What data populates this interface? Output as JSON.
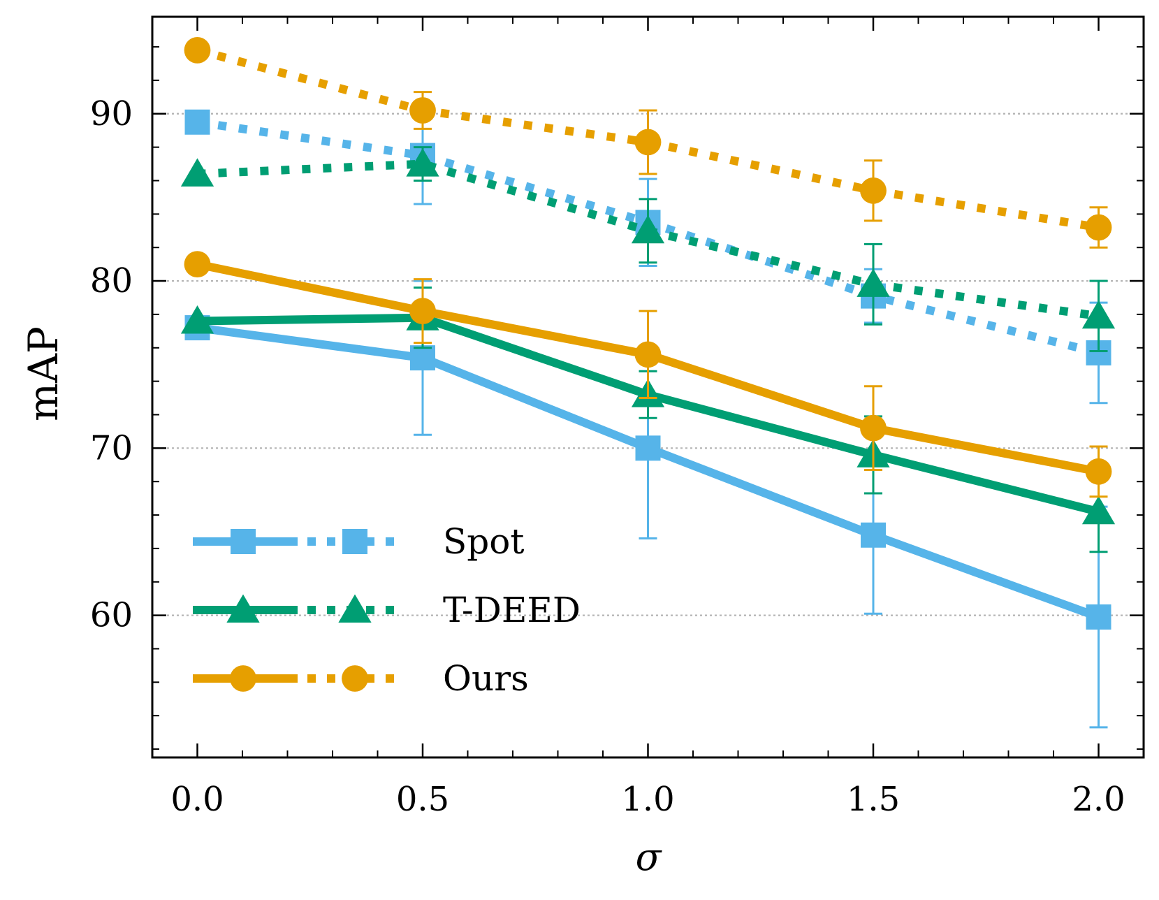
{
  "chart_data": {
    "type": "line",
    "xlabel": "σ",
    "ylabel": "mAP",
    "title": "",
    "xlim": [
      -0.1,
      2.1
    ],
    "ylim": [
      51.5,
      95.8
    ],
    "x": [
      0.0,
      0.5,
      1.0,
      1.5,
      2.0
    ],
    "xticks": [
      "0.0",
      "0.5",
      "1.0",
      "1.5",
      "2.0"
    ],
    "yticks": [
      60,
      70,
      80,
      90
    ],
    "grid": "horizontal-dotted",
    "legend_position": "lower-left",
    "series": [
      {
        "name": "Spot",
        "variant": "solid",
        "color": "#56B4E9",
        "marker": "square",
        "values": [
          77.2,
          75.4,
          70.0,
          64.8,
          59.9
        ],
        "errors": [
          0,
          4.6,
          5.4,
          4.7,
          6.6
        ]
      },
      {
        "name": "Spot",
        "variant": "dotted",
        "color": "#56B4E9",
        "marker": "square",
        "values": [
          89.5,
          87.5,
          83.5,
          79.1,
          75.7
        ],
        "errors": [
          0,
          2.9,
          2.6,
          1.6,
          3.0
        ]
      },
      {
        "name": "T-DEED",
        "variant": "solid",
        "color": "#009E73",
        "marker": "triangle",
        "values": [
          77.6,
          77.8,
          73.2,
          69.6,
          66.2
        ],
        "errors": [
          0,
          1.8,
          1.4,
          2.3,
          2.4
        ]
      },
      {
        "name": "T-DEED",
        "variant": "dotted",
        "color": "#009E73",
        "marker": "triangle",
        "values": [
          86.4,
          87.0,
          83.0,
          79.8,
          77.9
        ],
        "errors": [
          0,
          1.0,
          1.9,
          2.4,
          2.1
        ]
      },
      {
        "name": "Ours",
        "variant": "solid",
        "color": "#E69F00",
        "marker": "circle",
        "values": [
          81.0,
          78.2,
          75.6,
          71.2,
          68.6
        ],
        "errors": [
          0,
          1.9,
          2.6,
          2.5,
          1.5
        ]
      },
      {
        "name": "Ours",
        "variant": "dotted",
        "color": "#E69F00",
        "marker": "circle",
        "values": [
          93.8,
          90.2,
          88.3,
          85.4,
          83.2
        ],
        "errors": [
          0,
          1.1,
          1.9,
          1.8,
          1.2
        ]
      }
    ],
    "legend": [
      {
        "label": "Spot",
        "color": "#56B4E9",
        "marker": "square"
      },
      {
        "label": "T-DEED",
        "color": "#009E73",
        "marker": "triangle"
      },
      {
        "label": "Ours",
        "color": "#E69F00",
        "marker": "circle"
      }
    ]
  }
}
